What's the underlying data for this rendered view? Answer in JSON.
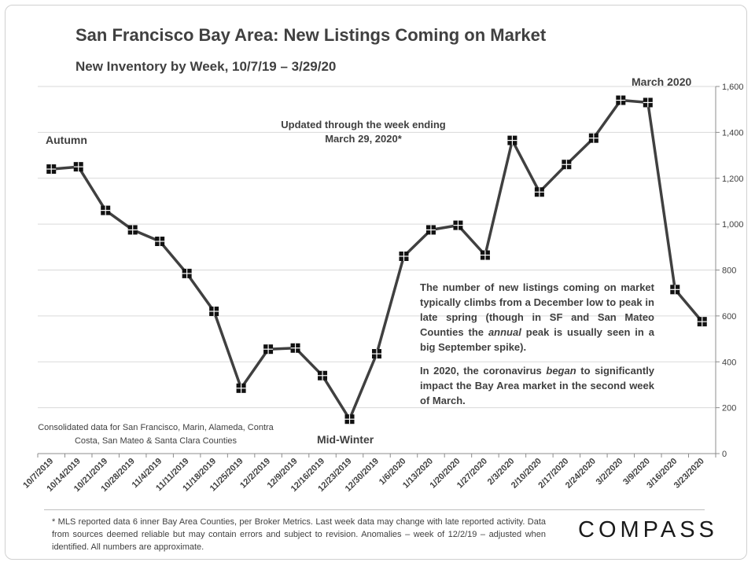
{
  "title": "San Francisco Bay Area: New Listings Coming on Market",
  "subtitle": "New Inventory by Week, 10/7/19 – 3/29/20",
  "annotations": {
    "autumn": "Autumn",
    "march_2020": "March 2020",
    "mid_winter": "Mid-Winter",
    "updated": "Updated through the week ending March 29, 2020*",
    "note1_a": "The number of new listings coming on market typically climbs from a December low to peak in late spring (though in SF and San Mateo Counties the ",
    "note1_em": "annual",
    "note1_b": " peak is usually seen in a big September spike).",
    "note2_a": "In 2020, the coronavirus ",
    "note2_em": "began",
    "note2_b": " to significantly impact the Bay Area market in the second week of March.",
    "source": "Consolidated data for San Francisco, Marin, Alameda, Contra Costa, San Mateo & Santa Clara Counties"
  },
  "footnote": "* MLS reported data 6 inner Bay Area Counties, per Broker Metrics. Last week data may change with late reported activity. Data from sources deemed reliable but may contain errors and subject to revision. Anomalies – week of 12/2/19 – adjusted when identified. All numbers are approximate.",
  "logo": "COMPASS",
  "colors": {
    "line": "#404040",
    "marker": "#111111",
    "grid": "#d9d9d9",
    "axis": "#8c8c8c",
    "text": "#404040"
  },
  "chart_data": {
    "type": "line",
    "categories": [
      "10/7/2019",
      "10/14/2019",
      "10/21/2019",
      "10/28/2019",
      "11/4/2019",
      "11/11/2019",
      "11/18/2019",
      "11/25/2019",
      "12/2/2019",
      "12/9/2019",
      "12/16/2019",
      "12/23/2019",
      "12/30/2019",
      "1/6/2020",
      "1/13/2020",
      "1/20/2020",
      "1/27/2020",
      "2/3/2020",
      "2/10/2020",
      "2/17/2020",
      "2/24/2020",
      "3/2/2020",
      "3/9/2020",
      "3/16/2020",
      "3/23/2020"
    ],
    "values": [
      1240,
      1250,
      1060,
      975,
      925,
      785,
      620,
      285,
      455,
      460,
      340,
      150,
      435,
      860,
      975,
      995,
      865,
      1365,
      1140,
      1260,
      1375,
      1540,
      1530,
      715,
      575
    ],
    "ylim": [
      0,
      1600
    ],
    "yticks": [
      0,
      200,
      400,
      600,
      800,
      1000,
      1200,
      1400,
      1600
    ],
    "ytick_labels": [
      "0",
      "200",
      "400",
      "600",
      "800",
      "1,000",
      "1,200",
      "1,400",
      "1,600"
    ],
    "y_axis_side": "right",
    "grid": true,
    "legend": "none"
  }
}
